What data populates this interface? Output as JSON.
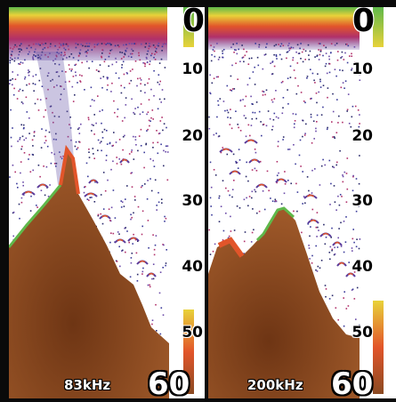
{
  "panels": [
    {
      "frequency": "83kHz",
      "depth_top": "0",
      "depth_bottom": "60",
      "depth_ticks": [
        "10",
        "20",
        "30",
        "40",
        "50"
      ]
    },
    {
      "frequency": "200kHz",
      "depth_top": "0",
      "depth_bottom": "60",
      "depth_ticks": [
        "10",
        "20",
        "30",
        "40",
        "50"
      ]
    }
  ],
  "colors": {
    "bottom": "#8a4a22",
    "surface_clutter": "#c8362a",
    "bottom_edge": "#5fb84a",
    "background": "#ffffff",
    "divider": "#0a0a0a"
  }
}
